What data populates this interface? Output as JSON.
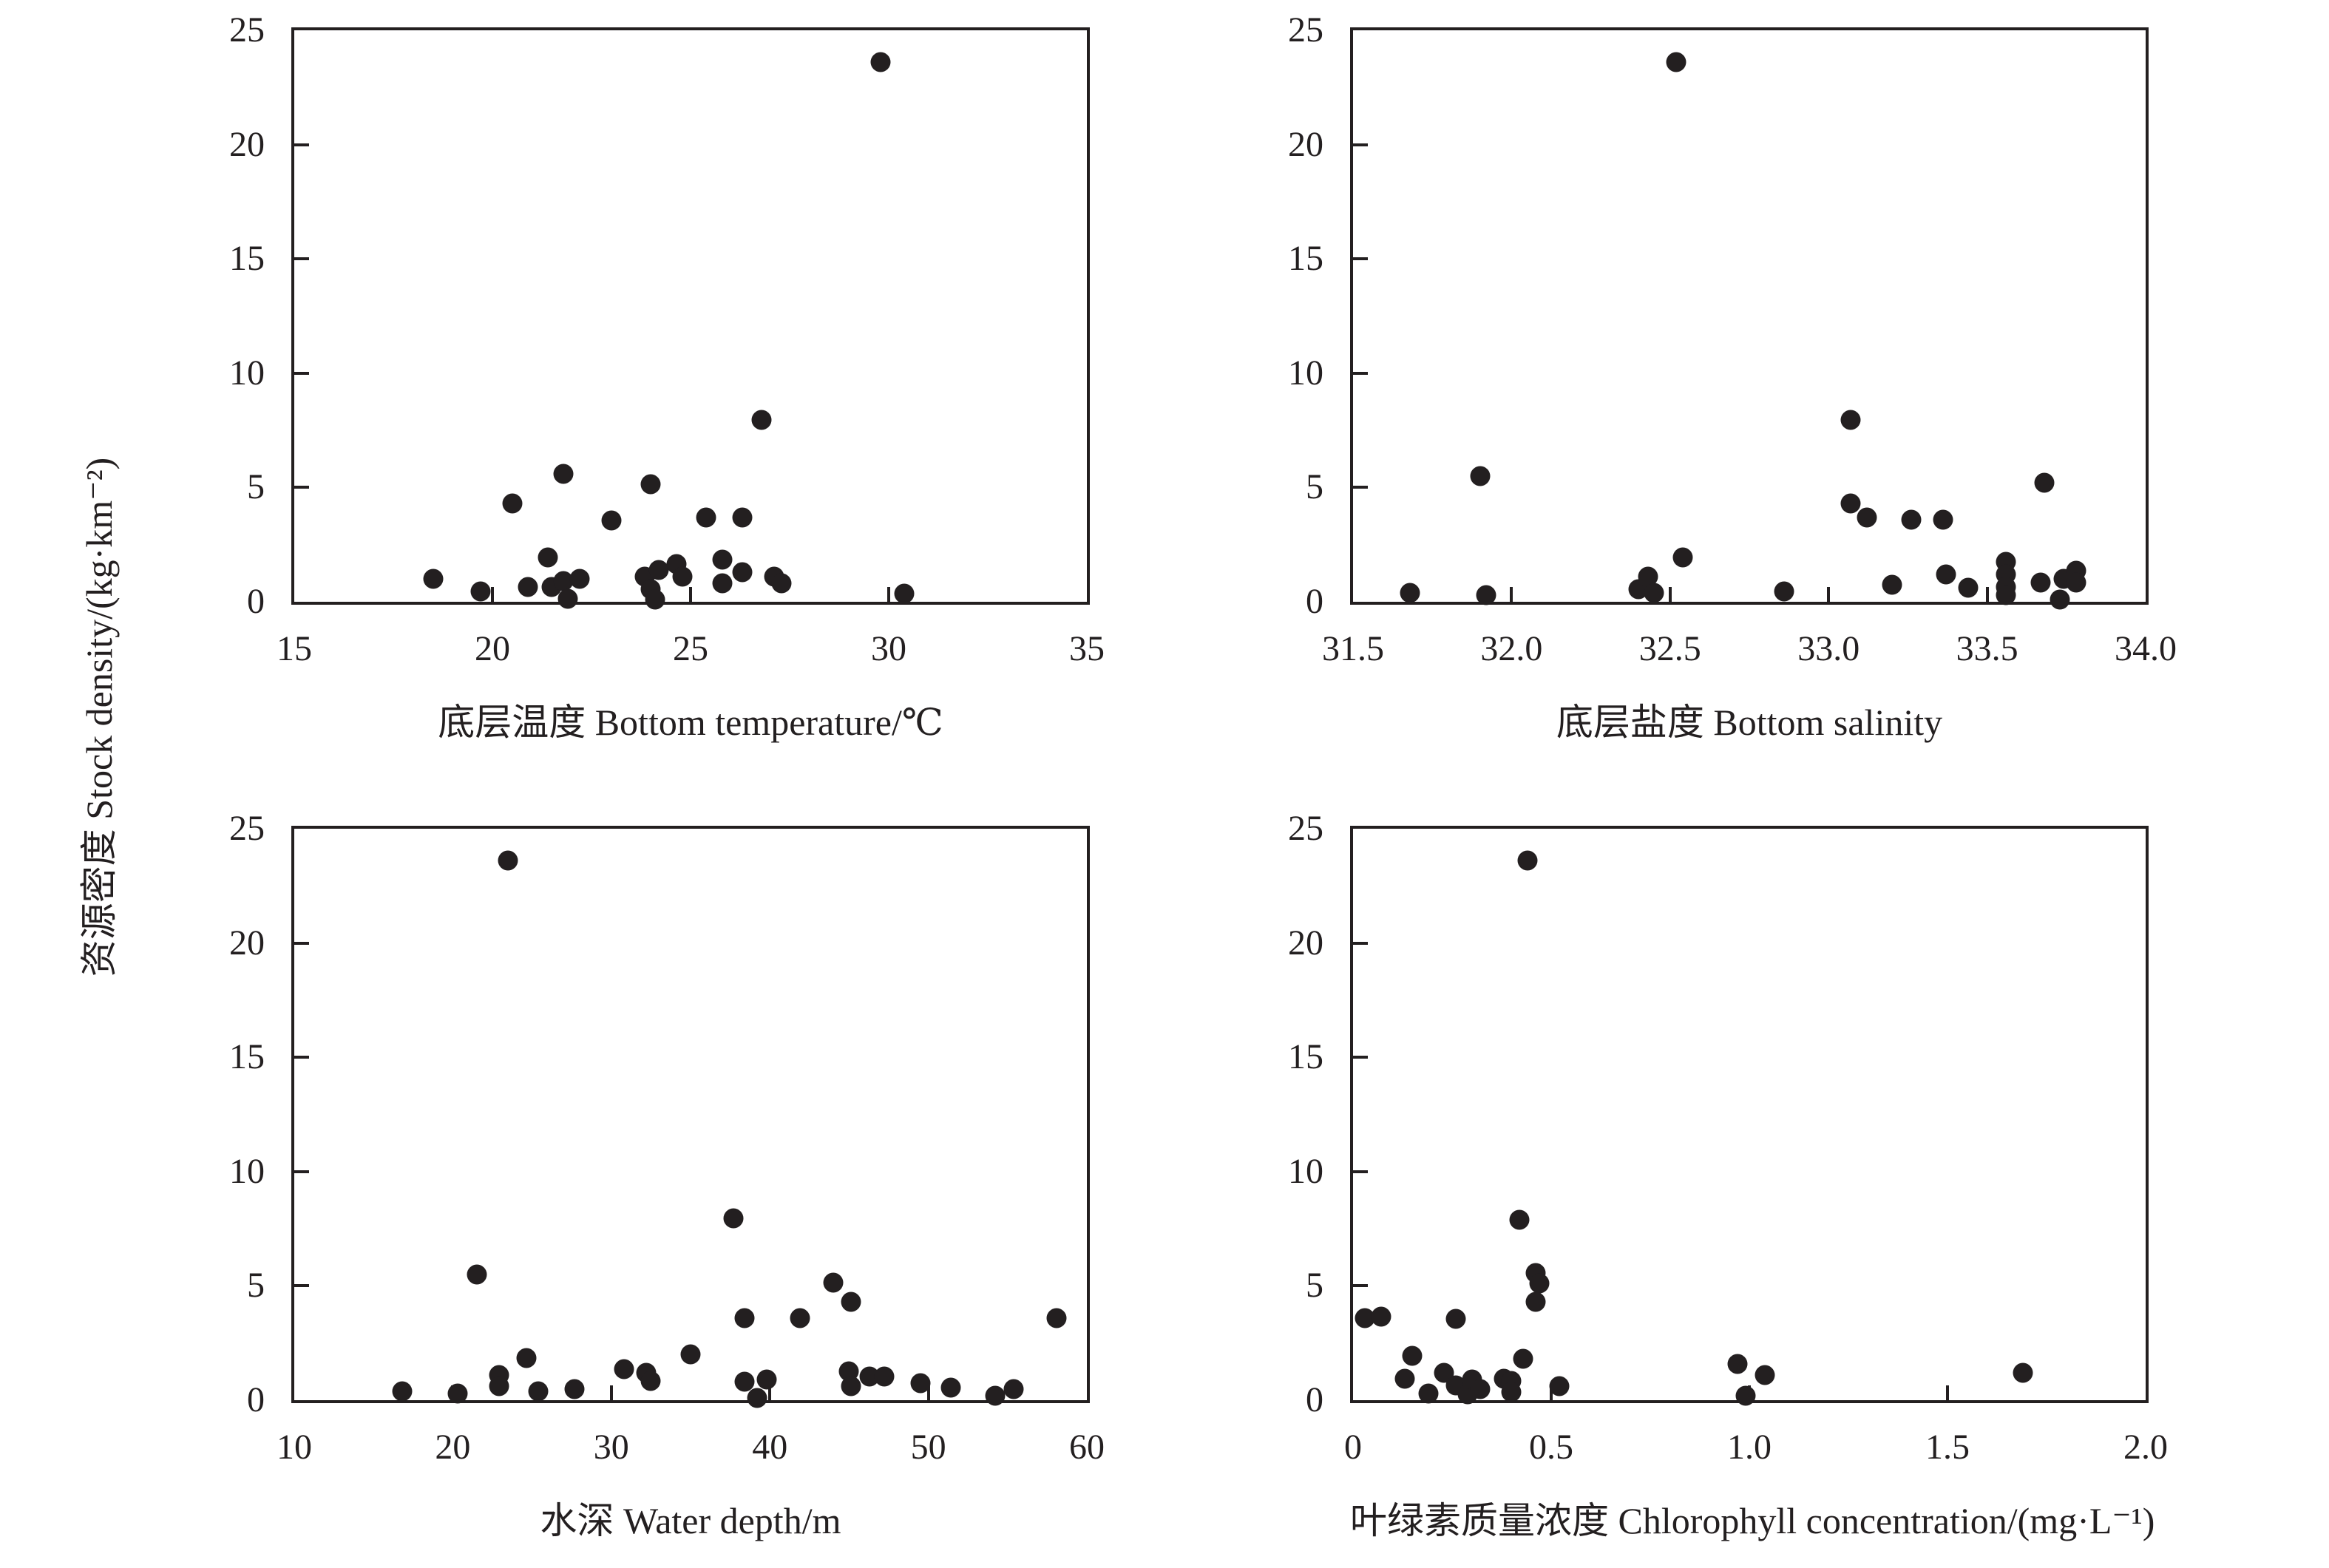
{
  "figure": {
    "ylabel": "资源密度 Stock density/(kg·km⁻²)",
    "marker_color": "#231f20",
    "background": "#ffffff"
  },
  "chart_data": [
    {
      "type": "scatter",
      "panel": "top-left",
      "title": "",
      "xlabel": "底层温度 Bottom temperature/℃",
      "ylabel": "资源密度 Stock density/(kg·km⁻²)",
      "xlim": [
        15,
        35
      ],
      "ylim": [
        0,
        25
      ],
      "x_tick_labels": [
        "15",
        "20",
        "25",
        "30",
        "35"
      ],
      "y_tick_labels": [
        "0",
        "5",
        "10",
        "15",
        "20",
        "25"
      ],
      "grid": false,
      "legend": "none",
      "points": [
        [
          18.5,
          1.0
        ],
        [
          19.7,
          0.45
        ],
        [
          20.5,
          4.3
        ],
        [
          20.9,
          0.65
        ],
        [
          21.4,
          1.95
        ],
        [
          21.5,
          0.65
        ],
        [
          21.8,
          5.6
        ],
        [
          21.8,
          0.9
        ],
        [
          21.9,
          0.12
        ],
        [
          22.2,
          1.0
        ],
        [
          23.0,
          3.55
        ],
        [
          23.85,
          1.1
        ],
        [
          24.0,
          5.15
        ],
        [
          24.0,
          0.55
        ],
        [
          24.1,
          0.1
        ],
        [
          24.2,
          1.4
        ],
        [
          24.65,
          1.65
        ],
        [
          24.8,
          1.1
        ],
        [
          25.4,
          3.7
        ],
        [
          25.8,
          1.85
        ],
        [
          25.8,
          0.8
        ],
        [
          26.3,
          3.7
        ],
        [
          26.3,
          1.3
        ],
        [
          26.8,
          7.95
        ],
        [
          27.1,
          1.1
        ],
        [
          27.3,
          0.8
        ],
        [
          29.8,
          23.6
        ],
        [
          30.4,
          0.35
        ]
      ]
    },
    {
      "type": "scatter",
      "panel": "top-right",
      "title": "",
      "xlabel": "底层盐度 Bottom salinity",
      "ylabel": "资源密度 Stock density/(kg·km⁻²)",
      "xlim": [
        31.5,
        34.0
      ],
      "ylim": [
        0,
        25
      ],
      "x_tick_labels": [
        "31.5",
        "32.0",
        "32.5",
        "33.0",
        "33.5",
        "34.0"
      ],
      "y_tick_labels": [
        "0",
        "5",
        "10",
        "15",
        "20",
        "25"
      ],
      "grid": false,
      "legend": "none",
      "points": [
        [
          31.68,
          0.4
        ],
        [
          31.9,
          5.5
        ],
        [
          31.92,
          0.3
        ],
        [
          32.4,
          0.55
        ],
        [
          32.43,
          1.1
        ],
        [
          32.45,
          0.4
        ],
        [
          32.52,
          23.6
        ],
        [
          32.54,
          1.95
        ],
        [
          32.86,
          0.45
        ],
        [
          33.07,
          7.95
        ],
        [
          33.07,
          4.3
        ],
        [
          33.12,
          3.7
        ],
        [
          33.2,
          0.75
        ],
        [
          33.26,
          3.6
        ],
        [
          33.36,
          3.6
        ],
        [
          33.37,
          1.2
        ],
        [
          33.44,
          0.6
        ],
        [
          33.56,
          1.75
        ],
        [
          33.56,
          1.2
        ],
        [
          33.56,
          0.65
        ],
        [
          33.56,
          0.3
        ],
        [
          33.67,
          0.85
        ],
        [
          33.68,
          5.2
        ],
        [
          33.73,
          0.1
        ],
        [
          33.74,
          1.0
        ],
        [
          33.78,
          1.35
        ],
        [
          33.78,
          0.85
        ]
      ]
    },
    {
      "type": "scatter",
      "panel": "bottom-left",
      "title": "",
      "xlabel": "水深 Water depth/m",
      "ylabel": "资源密度 Stock density/(kg·km⁻²)",
      "xlim": [
        10,
        60
      ],
      "ylim": [
        0,
        25
      ],
      "x_tick_labels": [
        "10",
        "20",
        "30",
        "40",
        "50",
        "60"
      ],
      "y_tick_labels": [
        "0",
        "5",
        "10",
        "15",
        "20",
        "25"
      ],
      "grid": false,
      "legend": "none",
      "points": [
        [
          16.8,
          0.4
        ],
        [
          20.3,
          0.3
        ],
        [
          21.5,
          5.5
        ],
        [
          22.9,
          1.1
        ],
        [
          22.9,
          0.6
        ],
        [
          23.5,
          23.6
        ],
        [
          24.65,
          1.85
        ],
        [
          25.4,
          0.4
        ],
        [
          27.7,
          0.5
        ],
        [
          30.8,
          1.35
        ],
        [
          32.2,
          1.2
        ],
        [
          32.5,
          0.85
        ],
        [
          35.0,
          2.0
        ],
        [
          37.7,
          7.95
        ],
        [
          38.4,
          3.6
        ],
        [
          38.4,
          0.8
        ],
        [
          39.2,
          0.1
        ],
        [
          39.8,
          0.9
        ],
        [
          41.9,
          3.6
        ],
        [
          44.0,
          5.15
        ],
        [
          45.0,
          1.25
        ],
        [
          45.1,
          4.3
        ],
        [
          45.1,
          0.6
        ],
        [
          46.3,
          1.05
        ],
        [
          47.2,
          1.05
        ],
        [
          49.5,
          0.75
        ],
        [
          51.4,
          0.55
        ],
        [
          54.2,
          0.2
        ],
        [
          55.4,
          0.5
        ],
        [
          58.1,
          3.6
        ]
      ]
    },
    {
      "type": "scatter",
      "panel": "bottom-right",
      "title": "",
      "xlabel": "叶绿素质量浓度 Chlorophyll concentration/(mg·L⁻¹)",
      "ylabel": "资源密度 Stock density/(kg·km⁻²)",
      "xlim": [
        0,
        2.0
      ],
      "ylim": [
        0,
        25
      ],
      "x_tick_labels": [
        "0",
        "0.5",
        "1.0",
        "1.5",
        "2.0"
      ],
      "y_tick_labels": [
        "0",
        "5",
        "10",
        "15",
        "20",
        "25"
      ],
      "grid": false,
      "legend": "none",
      "points": [
        [
          0.03,
          3.6
        ],
        [
          0.07,
          3.65
        ],
        [
          0.13,
          0.95
        ],
        [
          0.15,
          1.95
        ],
        [
          0.19,
          0.3
        ],
        [
          0.23,
          1.2
        ],
        [
          0.26,
          3.55
        ],
        [
          0.26,
          0.65
        ],
        [
          0.29,
          0.25
        ],
        [
          0.3,
          0.9
        ],
        [
          0.32,
          0.5
        ],
        [
          0.38,
          0.95
        ],
        [
          0.4,
          0.85
        ],
        [
          0.4,
          0.35
        ],
        [
          0.42,
          7.9
        ],
        [
          0.43,
          1.8
        ],
        [
          0.44,
          23.6
        ],
        [
          0.46,
          5.55
        ],
        [
          0.47,
          5.1
        ],
        [
          0.46,
          4.3
        ],
        [
          0.52,
          0.6
        ],
        [
          0.97,
          1.6
        ],
        [
          0.99,
          0.2
        ],
        [
          1.04,
          1.1
        ],
        [
          1.69,
          1.2
        ]
      ]
    }
  ]
}
